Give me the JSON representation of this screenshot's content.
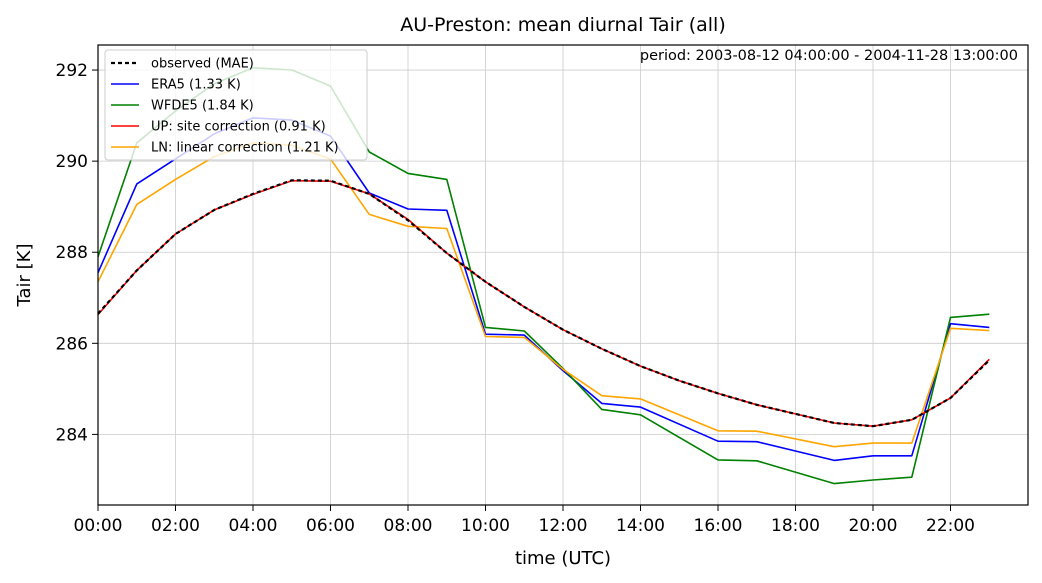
{
  "chart_data": {
    "type": "line",
    "title": "AU-Preston: mean diurnal Tair (all)",
    "annotation": "period: 2003-08-12 04:00:00 - 2004-11-28 13:00:00",
    "xlabel": "time (UTC)",
    "ylabel": "Tair [K]",
    "xlim": [
      0,
      24
    ],
    "ylim": [
      282.45,
      292.55
    ],
    "xticks": [
      0,
      2,
      4,
      6,
      8,
      10,
      12,
      14,
      16,
      18,
      20,
      22
    ],
    "xtick_labels": [
      "00:00",
      "02:00",
      "04:00",
      "06:00",
      "08:00",
      "10:00",
      "12:00",
      "14:00",
      "16:00",
      "18:00",
      "20:00",
      "22:00"
    ],
    "yticks": [
      284,
      286,
      288,
      290,
      292
    ],
    "ytick_labels": [
      "284",
      "286",
      "288",
      "290",
      "292"
    ],
    "grid": true,
    "legend_position": "top-left",
    "x": [
      0,
      1,
      2,
      3,
      4,
      5,
      6,
      7,
      8,
      9,
      10,
      11,
      12,
      13,
      14,
      15,
      16,
      17,
      18,
      19,
      20,
      21,
      22,
      23
    ],
    "series": [
      {
        "name": "observed (MAE)",
        "color": "#000000",
        "dashed": true,
        "values": [
          286.65,
          287.6,
          288.4,
          288.93,
          289.28,
          289.58,
          289.57,
          289.28,
          288.7,
          287.98,
          287.35,
          286.8,
          286.3,
          285.88,
          285.5,
          285.18,
          284.9,
          284.65,
          284.45,
          284.25,
          284.18,
          284.32,
          284.8,
          285.63
        ]
      },
      {
        "name": "ERA5 (1.33 K)",
        "color": "#0000ff",
        "dashed": false,
        "values": [
          287.55,
          289.5,
          290.05,
          290.6,
          290.95,
          290.9,
          290.55,
          289.3,
          288.95,
          288.92,
          286.2,
          286.18,
          285.4,
          284.68,
          284.6,
          null,
          283.85,
          283.84,
          null,
          283.43,
          283.53,
          283.53,
          286.43,
          286.35
        ]
      },
      {
        "name": "WFDE5 (1.84 K)",
        "color": "#008000",
        "dashed": false,
        "values": [
          287.9,
          290.4,
          291.1,
          291.7,
          292.05,
          292.0,
          291.65,
          290.2,
          289.73,
          289.6,
          286.35,
          286.27,
          285.45,
          284.55,
          284.43,
          null,
          283.44,
          283.42,
          null,
          282.92,
          283.0,
          283.06,
          286.57,
          286.64
        ]
      },
      {
        "name": "UP: site correction (0.91 K)",
        "color": "#ff0000",
        "dashed": false,
        "values": [
          286.63,
          287.6,
          288.4,
          288.93,
          289.27,
          289.57,
          289.56,
          289.28,
          288.72,
          287.98,
          287.35,
          286.8,
          286.3,
          285.88,
          285.5,
          285.18,
          284.9,
          284.65,
          284.45,
          284.25,
          284.18,
          284.32,
          284.8,
          285.65
        ]
      },
      {
        "name": "LN: linear correction (1.21 K)",
        "color": "#ffa500",
        "dashed": false,
        "values": [
          287.35,
          289.05,
          289.6,
          290.1,
          290.4,
          290.35,
          290.05,
          288.83,
          288.57,
          288.52,
          286.15,
          286.13,
          285.43,
          284.85,
          284.78,
          null,
          284.08,
          284.07,
          null,
          283.73,
          283.81,
          283.81,
          286.33,
          286.28
        ]
      }
    ]
  }
}
